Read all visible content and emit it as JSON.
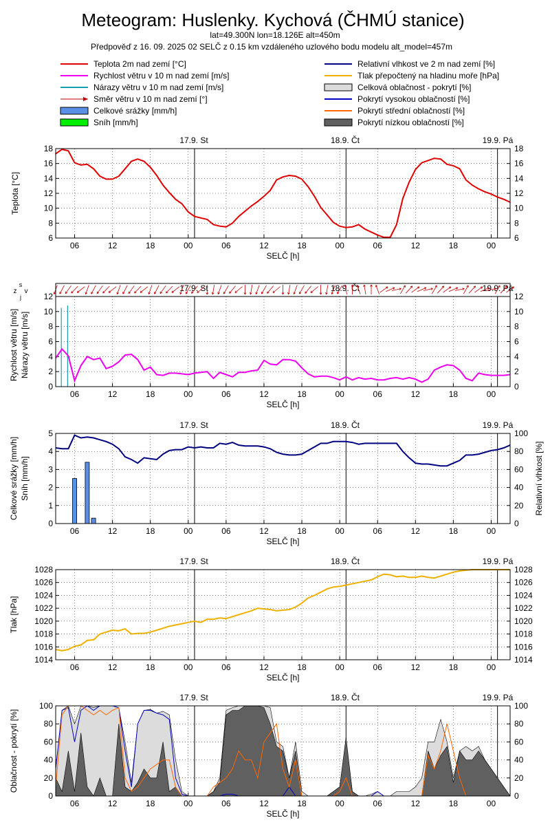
{
  "title": "Meteogram: Huslenky. Kychová (ČHMÚ stanice)",
  "subtitle1": "lat=49.300N lon=18.126E alt=450m",
  "subtitle2": "Předpověď z 16. 09. 2025 02 SELČ z 0.15 km vzdáleného uzlového bodu modelu alt_model=457m",
  "legend_left": [
    {
      "label": "Teplota 2m nad zemí [°C]",
      "kind": "line",
      "color": "#e00000"
    },
    {
      "label": "Rychlost větru v 10 m nad zemí [m/s]",
      "kind": "line",
      "color": "#ee00ee"
    },
    {
      "label": "Nárazy větru v 10 m nad zemí [m/s]",
      "kind": "line",
      "color": "#1a9fb0"
    },
    {
      "label": "Směr větru v 10 m nad zemí [°]",
      "kind": "arrow",
      "color": "#c00000"
    },
    {
      "label": "Celkové srážky [mm/h]",
      "kind": "box",
      "color": "#5a8fe6"
    },
    {
      "label": "Sníh [mm/h]",
      "kind": "box",
      "color": "#00ee00"
    }
  ],
  "legend_right": [
    {
      "label": "Relativní vlhkost ve 2 m nad zemí [%]",
      "kind": "line",
      "color": "#000080"
    },
    {
      "label": "Tlak přepočtený na hladinu moře [hPa]",
      "kind": "line",
      "color": "#f0b000"
    },
    {
      "label": "Celková oblačnost - pokrytí [%]",
      "kind": "box",
      "color": "#dcdcdc"
    },
    {
      "label": "Pokrytí vysokou oblačností [%]",
      "kind": "line",
      "color": "#0000c0"
    },
    {
      "label": "Pokrytí střední oblačností [%]",
      "kind": "line",
      "color": "#ff6600"
    },
    {
      "label": "Pokrytí nízkou oblačností [%]",
      "kind": "box",
      "color": "#606060"
    }
  ],
  "day_labels": [
    "17.9. St",
    "18.9. Čt",
    "19.9. Pá"
  ],
  "xticks": [
    "06",
    "12",
    "18",
    "00",
    "06",
    "12",
    "18",
    "00",
    "06",
    "12",
    "18",
    "00"
  ],
  "xlabel": "SELČ [h]",
  "wind_dir_axis": {
    "z": "z",
    "s": "s",
    "v": "v",
    "j": "j"
  },
  "chart_data": [
    {
      "type": "line",
      "ylabel": "Teplota [°C]",
      "ylim": [
        6,
        18
      ],
      "yticks": [
        6,
        8,
        10,
        12,
        14,
        16,
        18
      ],
      "x_hours_from_start": [
        0,
        1,
        2,
        3,
        4,
        5,
        6,
        7,
        8,
        9,
        10,
        11,
        12,
        13,
        14,
        15,
        16,
        17,
        18,
        19,
        20,
        21,
        22,
        23,
        24,
        25,
        26,
        27,
        28,
        29,
        30,
        31,
        32,
        33,
        34,
        35,
        36,
        37,
        38,
        39,
        40,
        41,
        42,
        43,
        44,
        45,
        46,
        47,
        48,
        49,
        50,
        51,
        52,
        53,
        54,
        55,
        56,
        57,
        58,
        59,
        60,
        61,
        62,
        63,
        64,
        65,
        66,
        67,
        68,
        69,
        70,
        71,
        72
      ],
      "series": [
        {
          "name": "Teplota 2m nad zemí [°C]",
          "color": "#e00000",
          "values": [
            17.3,
            17.9,
            17.7,
            16.1,
            15.8,
            15.9,
            15.3,
            14.3,
            13.9,
            13.9,
            14.3,
            15.3,
            16.3,
            16.6,
            16.3,
            15.5,
            14.4,
            13.1,
            12.1,
            11.2,
            10.6,
            9.5,
            8.9,
            8.7,
            8.5,
            7.8,
            7.6,
            7.5,
            8.0,
            8.9,
            9.6,
            10.3,
            10.9,
            11.6,
            12.4,
            13.8,
            14.2,
            14.4,
            14.3,
            13.9,
            12.9,
            11.6,
            10.1,
            9.1,
            8.1,
            7.6,
            7.4,
            7.5,
            7.8,
            7.2,
            6.8,
            6.4,
            6.1,
            6.1,
            7.8,
            11.3,
            13.5,
            15.2,
            16.1,
            16.4,
            16.7,
            16.6,
            15.9,
            15.7,
            15.3,
            13.8,
            13.1,
            12.6,
            12.2,
            11.9,
            11.5,
            11.2,
            10.8
          ]
        }
      ]
    },
    {
      "type": "line",
      "ylabel": "Rychlost větru [m/s]",
      "ylabel2": "Nárazy větru [m/s]",
      "ylim": [
        0,
        12
      ],
      "yticks": [
        0,
        2,
        4,
        6,
        8,
        10,
        12
      ],
      "series": [
        {
          "name": "Rychlost větru v 10 m nad zemí [m/s]",
          "color": "#ee00ee",
          "values": [
            3.8,
            5.0,
            4.1,
            0.8,
            2.8,
            4.0,
            3.6,
            3.8,
            2.4,
            2.7,
            3.3,
            4.2,
            4.3,
            3.6,
            2.2,
            2.6,
            1.6,
            1.5,
            1.8,
            1.8,
            1.7,
            1.6,
            1.8,
            1.9,
            2.0,
            1.1,
            1.9,
            1.6,
            1.3,
            1.9,
            1.9,
            2.1,
            2.2,
            3.5,
            3.0,
            2.9,
            3.6,
            3.6,
            3.4,
            2.5,
            1.7,
            1.3,
            1.4,
            1.4,
            1.2,
            0.9,
            1.3,
            0.9,
            1.2,
            1.0,
            1.1,
            0.9,
            0.9,
            1.1,
            1.2,
            1.0,
            1.2,
            1.0,
            0.6,
            1.0,
            2.2,
            2.6,
            2.9,
            2.8,
            2.2,
            1.1,
            0.8,
            1.8,
            1.6,
            1.5,
            1.5,
            1.5,
            1.6
          ]
        },
        {
          "name": "Nárazy větru v 10 m nad zemí [m/s]",
          "color": "#1a9fb0",
          "x_hours": [
            1,
            2
          ],
          "values": [
            10.5,
            10.8
          ]
        }
      ],
      "wind_direction_arrows": "red arrows along top strip (direction mostly W/SW, later N/NE)"
    },
    {
      "type": "bar+line",
      "ylabel": "Celkové srážky [mm/h]",
      "ylabel2": "Sníh [mm/h]",
      "ylabel_right": "Relativní vlhkost [%]",
      "ylim": [
        0,
        5
      ],
      "yticks": [
        0,
        1,
        2,
        3,
        4,
        5
      ],
      "ylim_right": [
        0,
        100
      ],
      "yticks_right": [
        0,
        20,
        40,
        60,
        80,
        100
      ],
      "precip_x_hours": [
        3,
        5,
        6
      ],
      "precip_values": [
        2.5,
        3.4,
        0.3
      ],
      "series": [
        {
          "name": "Relativní vlhkost ve 2 m nad zemí [%]",
          "color": "#000080",
          "values": [
            84,
            83,
            83,
            98,
            95,
            96,
            95,
            93,
            91,
            88,
            83,
            74,
            71,
            67,
            73,
            72,
            71,
            77,
            81,
            82,
            82,
            85,
            84,
            85,
            84,
            84,
            89,
            88,
            90,
            87,
            86,
            86,
            86,
            85,
            83,
            79,
            77,
            76,
            76,
            77,
            81,
            85,
            89,
            89,
            91,
            91,
            91,
            90,
            88,
            89,
            89,
            89,
            89,
            89,
            89,
            80,
            73,
            67,
            66,
            66,
            65,
            64,
            64,
            67,
            70,
            76,
            76,
            77,
            79,
            81,
            82,
            84,
            87
          ]
        }
      ]
    },
    {
      "type": "line",
      "ylabel": "Tlak [hPa]",
      "ylim": [
        1014,
        1028
      ],
      "yticks": [
        1014,
        1016,
        1018,
        1020,
        1022,
        1024,
        1026,
        1028
      ],
      "series": [
        {
          "name": "Tlak přepočtený na hladinu moře [hPa]",
          "color": "#f0b000",
          "values": [
            1015.6,
            1015.4,
            1015.6,
            1016.1,
            1016.3,
            1017.0,
            1017.1,
            1018.0,
            1018.3,
            1018.6,
            1018.5,
            1018.8,
            1018.0,
            1018.1,
            1018.1,
            1018.3,
            1018.6,
            1018.9,
            1019.2,
            1019.4,
            1019.6,
            1019.8,
            1020.0,
            1019.8,
            1020.3,
            1020.3,
            1020.5,
            1020.4,
            1020.7,
            1021.0,
            1021.3,
            1021.6,
            1022.0,
            1021.9,
            1021.8,
            1021.6,
            1021.7,
            1021.8,
            1022.2,
            1022.8,
            1023.6,
            1024.0,
            1024.5,
            1025.0,
            1025.3,
            1025.4,
            1025.6,
            1025.8,
            1026.0,
            1026.2,
            1026.4,
            1026.9,
            1027.3,
            1027.2,
            1026.9,
            1027.0,
            1026.8,
            1026.8,
            1027.0,
            1026.8,
            1026.7,
            1027.0,
            1027.3,
            1027.6,
            1027.8,
            1027.9,
            1028.0,
            1028.0,
            1028.0,
            1028.0,
            1028.0,
            1028.0,
            1028.0
          ]
        }
      ]
    },
    {
      "type": "area+line",
      "ylabel": "Oblačnost - pokrytí [%]",
      "ylim": [
        0,
        100
      ],
      "yticks": [
        0,
        20,
        40,
        60,
        80,
        100
      ],
      "series": [
        {
          "name": "Celková oblačnost - pokrytí [%]",
          "color": "#dcdcdc",
          "values": [
            30,
            95,
            100,
            80,
            100,
            100,
            98,
            100,
            100,
            100,
            98,
            60,
            15,
            80,
            95,
            96,
            92,
            94,
            90,
            40,
            5,
            0,
            0,
            0,
            0,
            5,
            20,
            95,
            98,
            100,
            100,
            100,
            100,
            100,
            98,
            60,
            55,
            20,
            60,
            5,
            0,
            0,
            0,
            0,
            5,
            10,
            60,
            5,
            0,
            0,
            2,
            5,
            0,
            0,
            5,
            5,
            5,
            10,
            20,
            60,
            60,
            85,
            60,
            20,
            50,
            55,
            50,
            55,
            40,
            30,
            20,
            10,
            0
          ]
        },
        {
          "name": "Pokrytí vysokou oblačností [%]",
          "color": "#0000c0",
          "values": [
            30,
            95,
            98,
            60,
            95,
            100,
            95,
            100,
            100,
            100,
            98,
            50,
            10,
            80,
            95,
            95,
            92,
            90,
            85,
            20,
            2,
            0,
            0,
            0,
            0,
            0,
            0,
            2,
            2,
            0,
            0,
            0,
            0,
            0,
            0,
            0,
            0,
            10,
            0,
            0,
            0,
            0,
            0,
            0,
            0,
            0,
            0,
            0,
            0,
            0,
            0,
            5,
            0,
            0,
            0,
            0,
            0,
            0,
            0,
            0,
            0,
            0,
            0,
            0,
            0,
            0,
            0,
            0,
            0,
            0,
            0,
            0,
            0
          ]
        },
        {
          "name": "Pokrytí střední oblačností [%]",
          "color": "#ff6600",
          "values": [
            10,
            90,
            100,
            100,
            100,
            95,
            90,
            95,
            90,
            95,
            98,
            20,
            5,
            10,
            20,
            30,
            35,
            40,
            40,
            10,
            0,
            0,
            0,
            0,
            0,
            10,
            15,
            20,
            30,
            50,
            40,
            40,
            20,
            60,
            70,
            80,
            30,
            10,
            40,
            0,
            0,
            0,
            0,
            0,
            0,
            5,
            20,
            0,
            0,
            0,
            0,
            0,
            0,
            0,
            0,
            0,
            0,
            0,
            0,
            45,
            30,
            50,
            80,
            50,
            20,
            0,
            0,
            0,
            0,
            0,
            0,
            0,
            0
          ]
        },
        {
          "name": "Pokrytí nízkou oblačností [%]",
          "color": "#606060",
          "values": [
            20,
            5,
            50,
            5,
            70,
            10,
            0,
            20,
            0,
            0,
            80,
            10,
            5,
            15,
            30,
            20,
            20,
            60,
            5,
            10,
            0,
            0,
            0,
            0,
            0,
            5,
            15,
            90,
            95,
            95,
            100,
            100,
            100,
            98,
            80,
            55,
            50,
            20,
            50,
            0,
            0,
            0,
            0,
            0,
            5,
            10,
            65,
            5,
            0,
            0,
            0,
            0,
            0,
            0,
            0,
            0,
            0,
            0,
            0,
            50,
            30,
            45,
            55,
            15,
            50,
            40,
            40,
            50,
            40,
            30,
            20,
            10,
            0
          ]
        }
      ]
    }
  ]
}
